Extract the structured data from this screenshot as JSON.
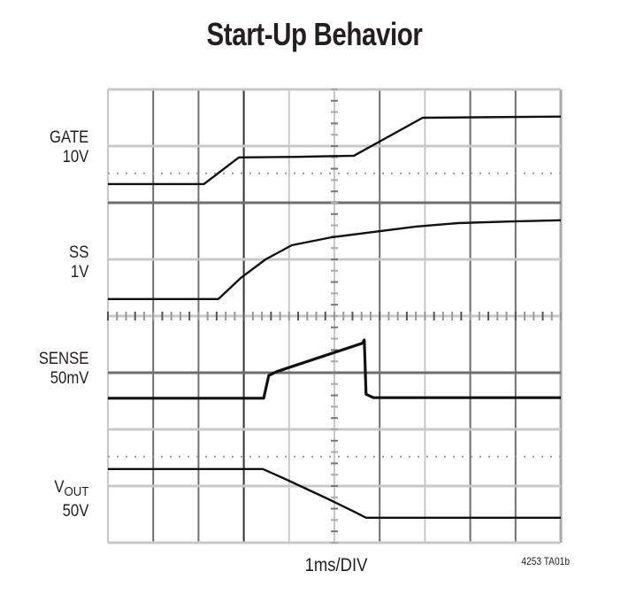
{
  "title": "Start-Up Behavior",
  "channels": [
    {
      "name": "GATE",
      "scale": "10V"
    },
    {
      "name": "SS",
      "scale": "1V"
    },
    {
      "name": "SENSE",
      "scale": "50mV"
    },
    {
      "name": "V",
      "name_sub": "OUT",
      "scale": "50V"
    }
  ],
  "x_axis_label": "1ms/DIV",
  "figure_id": "4253 TA01b",
  "colors": {
    "trace": "#111111",
    "grid_light": "#c8c8c8",
    "grid_dark": "#6e6e6e",
    "text": "#231f20"
  },
  "chart_data": {
    "type": "line",
    "title": "Start-Up Behavior",
    "xlabel": "1ms/DIV",
    "ylabel": "",
    "grid": true,
    "legend_position": "left",
    "xlim": [
      0,
      10
    ],
    "ylim_divisions": [
      0,
      8
    ],
    "x_units": "ms",
    "y_units": "divisions from top of screen",
    "horizontal_divisions": 10,
    "vertical_divisions": 8,
    "annotations": [
      "GATE 10V",
      "SS 1V",
      "SENSE 50mV",
      "VOUT 50V",
      "4253 TA01b"
    ],
    "series": [
      {
        "name": "GATE",
        "scale": "10V/div",
        "ground_ref_div": 1.48,
        "x": [
          0,
          2.12,
          2.89,
          4.16,
          5.43,
          6.95,
          10
        ],
        "y": [
          1.67,
          1.67,
          1.2,
          1.19,
          1.17,
          0.5,
          0.48
        ]
      },
      {
        "name": "SS",
        "scale": "1V/div",
        "x": [
          0,
          2.44,
          2.93,
          3.48,
          4.06,
          4.94,
          5.82,
          6.8,
          7.73,
          8.95,
          10
        ],
        "y": [
          3.7,
          3.7,
          3.33,
          3.0,
          2.75,
          2.61,
          2.52,
          2.42,
          2.36,
          2.33,
          2.31
        ]
      },
      {
        "name": "SENSE",
        "scale": "50mV/div",
        "x": [
          0,
          3.44,
          3.55,
          3.73,
          5.62,
          5.66,
          5.7,
          5.86,
          10
        ],
        "y": [
          5.45,
          5.45,
          5.05,
          4.98,
          4.48,
          4.42,
          5.38,
          5.44,
          5.44
        ]
      },
      {
        "name": "VOUT",
        "scale": "50V/div",
        "ground_ref_div": 6.48,
        "x": [
          0,
          3.42,
          3.87,
          4.84,
          5.43,
          5.7,
          10
        ],
        "y": [
          6.7,
          6.7,
          6.86,
          7.22,
          7.45,
          7.56,
          7.56
        ]
      }
    ]
  }
}
